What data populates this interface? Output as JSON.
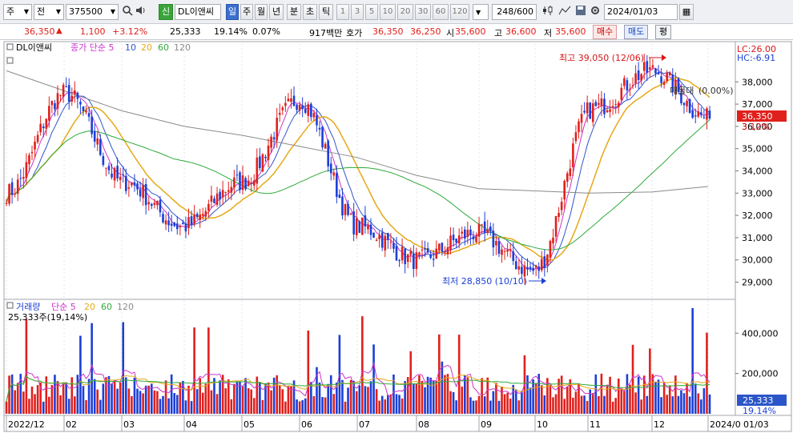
{
  "toolbar": {
    "market": "주",
    "type": "전",
    "code": "375500",
    "badge": "신",
    "name": "DL이앤씨",
    "periods": [
      "일",
      "주",
      "월",
      "년",
      "분",
      "초",
      "틱"
    ],
    "active_period": "일",
    "intervals": [
      "1",
      "3",
      "5",
      "10",
      "20",
      "30",
      "60",
      "120"
    ],
    "count": "248",
    "count_max": "600",
    "date": "2024/01/03"
  },
  "quote": {
    "price": "36,350",
    "arrow": "▲",
    "change": "1,100",
    "change_pct": "+3.12%",
    "volume": "25,333",
    "volume_ratio": "19.14%",
    "turnover_pct": "0.07%",
    "amount": "917백만",
    "bid_label": "호가",
    "ask": "36,350",
    "bid": "36,250",
    "open_label": "시",
    "open": "35,600",
    "high_label": "고",
    "high": "36,600",
    "low_label": "저",
    "low": "35,600",
    "buy_label": "매수",
    "sell_label": "매도",
    "eval_label": "평"
  },
  "colors": {
    "up": "#e0201c",
    "down": "#1c3fd8",
    "ma5": "#cc33cc",
    "ma10": "#3355cc",
    "ma20": "#e6a817",
    "ma60": "#2eaa3a",
    "ma120": "#8a8a8a"
  },
  "chart_data": [
    {
      "type": "line",
      "title": "DL이앤씨",
      "legend": [
        {
          "name": "종가 단순 5",
          "color": "#cc33cc"
        },
        {
          "name": "10",
          "color": "#3355cc"
        },
        {
          "name": "20",
          "color": "#e6a817"
        },
        {
          "name": "60",
          "color": "#2eaa3a"
        },
        {
          "name": "120",
          "color": "#8a8a8a"
        }
      ],
      "candlestick": true,
      "x_ticks": [
        "2022/12",
        "02",
        "03",
        "04",
        "05",
        "06",
        "07",
        "08",
        "09",
        "10",
        "11",
        "12",
        "2024/0"
      ],
      "y_ticks": [
        29000,
        30000,
        31000,
        32000,
        33000,
        34000,
        35000,
        36000,
        37000,
        38000
      ],
      "y_tick_labels": [
        "29,000",
        "30,000",
        "31,000",
        "32,000",
        "33,000",
        "34,000",
        "35,000",
        "36,000",
        "37,000",
        "38,000"
      ],
      "ylim": [
        28300,
        39700
      ],
      "series": [
        {
          "name": "close",
          "x": [
            "2022/12",
            "02",
            "03",
            "04",
            "05",
            "06",
            "07",
            "08",
            "09",
            "10",
            "11",
            "12",
            "2024/0"
          ],
          "values": [
            33000,
            37500,
            33500,
            31500,
            33500,
            37200,
            31500,
            30000,
            31200,
            29500,
            36800,
            38500,
            36350
          ]
        },
        {
          "name": "120",
          "x": [
            "2022/12",
            "02",
            "03",
            "04",
            "05",
            "06",
            "07",
            "08",
            "09",
            "10",
            "11",
            "12",
            "2024/0"
          ],
          "values": [
            38500,
            37600,
            36700,
            36000,
            35600,
            35100,
            34600,
            33800,
            33200,
            33100,
            33000,
            33050,
            33300
          ]
        }
      ],
      "annotations": {
        "high": "최고 39,050 (12/06)",
        "low": "최저 28,850 (10/10)",
        "band": "매물대",
        "band_pct": "(0.00%)",
        "lc": "LC:26.00",
        "hc": "HC:-6.91",
        "last_price": "36,350",
        "last_pct": "3.12%"
      }
    },
    {
      "type": "bar",
      "title": "거래량",
      "legend": [
        {
          "name": "단순 5",
          "color": "#cc33cc"
        },
        {
          "name": "20",
          "color": "#e6a817"
        },
        {
          "name": "60",
          "color": "#2eaa3a"
        },
        {
          "name": "120",
          "color": "#8a8a8a"
        }
      ],
      "current": "25,333주(19,14%)",
      "y_ticks": [
        200000,
        400000
      ],
      "y_tick_labels": [
        "200,000",
        "400,000"
      ],
      "ylim": [
        0,
        560000
      ],
      "last_value": "25,333",
      "last_pct": "19.14%",
      "x_axis_end": "01/03"
    }
  ]
}
